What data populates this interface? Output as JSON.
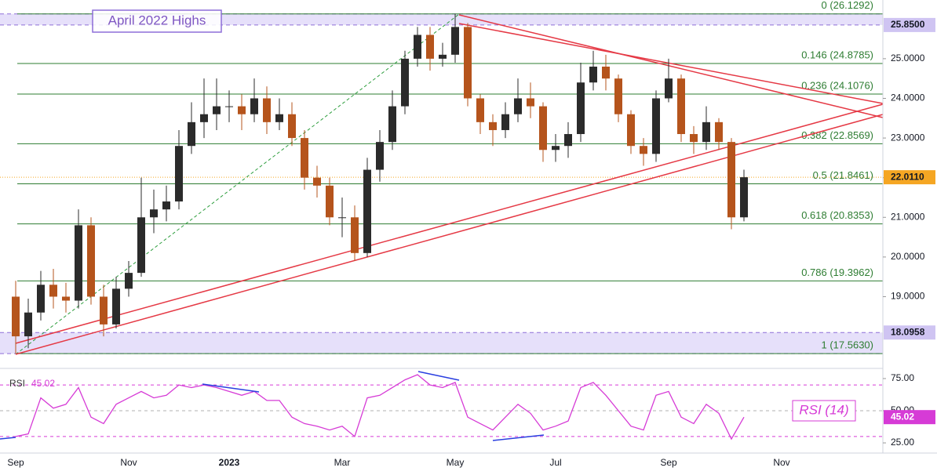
{
  "chart_data": [
    {
      "type": "candlestick",
      "annotation": "April 2022 Highs",
      "categories": [
        "Sep",
        null,
        null,
        null,
        null,
        null,
        null,
        null,
        null,
        "Nov",
        null,
        null,
        null,
        null,
        null,
        null,
        null,
        "2023",
        null,
        null,
        null,
        null,
        null,
        null,
        null,
        null,
        "Mar",
        null,
        null,
        null,
        null,
        null,
        null,
        null,
        null,
        "May",
        null,
        null,
        null,
        null,
        null,
        null,
        null,
        "Jul",
        null,
        null,
        null,
        null,
        null,
        null,
        null,
        null,
        "Sep",
        null,
        null,
        null,
        null,
        null,
        null,
        null,
        null,
        "Nov"
      ],
      "open": [
        19.0,
        18.0,
        18.6,
        19.3,
        19.0,
        18.9,
        20.8,
        19.0,
        18.3,
        19.2,
        19.6,
        21.0,
        21.2,
        21.4,
        22.8,
        23.4,
        23.6,
        23.8,
        23.8,
        23.6,
        24.0,
        23.4,
        23.6,
        23.0,
        22.0,
        21.8,
        21.0,
        21.0,
        20.1,
        22.2,
        22.9,
        23.8,
        25.0,
        25.6,
        25.0,
        25.1,
        25.8,
        24.0,
        23.4,
        23.2,
        23.6,
        24.0,
        23.8,
        22.7,
        22.8,
        23.1,
        24.4,
        24.8,
        24.5,
        23.6,
        22.8,
        22.6,
        24.0,
        24.5,
        23.1,
        22.9,
        23.4,
        22.9,
        21.0,
        null,
        null,
        null
      ],
      "high": [
        19.4,
        18.95,
        19.65,
        19.7,
        19.35,
        21.2,
        21.0,
        19.3,
        19.5,
        19.9,
        22.0,
        21.7,
        21.8,
        23.2,
        23.9,
        24.5,
        24.5,
        24.2,
        24.1,
        24.5,
        24.3,
        24.0,
        23.9,
        23.2,
        22.3,
        22.0,
        21.5,
        21.3,
        22.5,
        23.2,
        24.2,
        25.2,
        25.8,
        25.8,
        25.4,
        26.13,
        25.9,
        24.1,
        23.6,
        23.9,
        24.5,
        24.4,
        23.9,
        23.1,
        23.4,
        24.9,
        25.2,
        25.1,
        24.6,
        23.7,
        23.0,
        24.2,
        25.0,
        24.6,
        23.3,
        23.8,
        23.5,
        23.0,
        22.2,
        null,
        null,
        null
      ],
      "low": [
        17.56,
        17.7,
        18.4,
        18.7,
        18.6,
        18.7,
        18.8,
        18.0,
        18.2,
        19.0,
        19.5,
        20.6,
        20.9,
        21.2,
        22.6,
        23.0,
        23.2,
        23.4,
        23.2,
        23.4,
        23.1,
        23.2,
        22.8,
        21.7,
        21.5,
        20.8,
        20.5,
        19.9,
        20.0,
        21.9,
        22.7,
        23.6,
        24.8,
        24.7,
        24.8,
        24.9,
        23.8,
        23.1,
        22.8,
        23.0,
        23.4,
        23.5,
        22.4,
        22.4,
        22.5,
        22.9,
        24.2,
        24.2,
        23.4,
        22.6,
        22.3,
        22.4,
        23.9,
        22.9,
        22.6,
        22.7,
        22.7,
        20.7,
        20.9,
        null,
        null,
        null
      ],
      "close": [
        18.0,
        18.6,
        19.3,
        19.0,
        18.9,
        20.8,
        19.0,
        18.3,
        19.2,
        19.6,
        21.0,
        21.2,
        21.4,
        22.8,
        23.4,
        23.6,
        23.8,
        23.8,
        23.6,
        24.0,
        23.4,
        23.6,
        23.0,
        22.0,
        21.8,
        21.0,
        21.0,
        20.1,
        22.2,
        22.9,
        23.8,
        25.0,
        25.6,
        25.0,
        25.1,
        25.8,
        24.0,
        23.4,
        23.2,
        23.6,
        24.0,
        23.8,
        22.7,
        22.8,
        23.1,
        24.4,
        24.8,
        24.5,
        23.6,
        22.8,
        22.6,
        24.0,
        24.5,
        23.1,
        22.9,
        23.4,
        22.9,
        21.0,
        22.011,
        null,
        null,
        null
      ],
      "up_color": "#2b2b2b",
      "down_color": "#b5541c",
      "ylim": [
        17.29,
        26.48
      ],
      "yticks": [
        {
          "value": 19,
          "label": "19.0000"
        },
        {
          "value": 20,
          "label": "20.0000"
        },
        {
          "value": 21,
          "label": "21.0000"
        },
        {
          "value": 22,
          "label": "22.0000"
        },
        {
          "value": 23,
          "label": "23.0000"
        },
        {
          "value": 24,
          "label": "24.0000"
        },
        {
          "value": 25,
          "label": "25.0000"
        }
      ],
      "levels": [
        {
          "value": 26.1292,
          "label": "0 (26.1292)"
        },
        {
          "value": 24.8785,
          "label": "0.146 (24.8785)"
        },
        {
          "value": 24.1076,
          "label": "0.236 (24.1076)"
        },
        {
          "value": 22.8569,
          "label": "0.382 (22.8569)"
        },
        {
          "value": 21.8461,
          "label": "0.5 (21.8461)"
        },
        {
          "value": 20.8353,
          "label": "0.618 (20.8353)"
        },
        {
          "value": 19.3962,
          "label": "0.786 (19.3962)"
        },
        {
          "value": 17.563,
          "label": "1 (17.5630)"
        }
      ],
      "level_color": "#2e7d32",
      "price_labels": [
        {
          "value": 25.85,
          "label": "25.8500",
          "color": "#cfc4f2"
        },
        {
          "value": 22.011,
          "label": "22.0110",
          "color": "#f5a623"
        },
        {
          "value": 18.0958,
          "label": "18.0958",
          "color": "#cfc4f2"
        }
      ]
    },
    {
      "type": "line",
      "title": "RSI (14)",
      "name": "RSI",
      "last_label": "45.02",
      "values": [
        30,
        32,
        60,
        52,
        55,
        68,
        45,
        40,
        55,
        60,
        65,
        60,
        62,
        70,
        68,
        70,
        68,
        65,
        62,
        65,
        58,
        58,
        45,
        40,
        38,
        35,
        38,
        30,
        60,
        62,
        68,
        74,
        78,
        70,
        68,
        72,
        45,
        40,
        35,
        45,
        55,
        48,
        35,
        38,
        42,
        68,
        72,
        62,
        50,
        38,
        35,
        62,
        65,
        45,
        40,
        55,
        48,
        28,
        45.02,
        null,
        null,
        null
      ],
      "color": "#d63bd6",
      "ylim": [
        17.1,
        82.9
      ],
      "yticks": [
        {
          "value": 25,
          "label": "25.00"
        },
        {
          "value": 50,
          "label": "50.00"
        },
        {
          "value": 75,
          "label": "75.00"
        }
      ],
      "guides": [
        70,
        50,
        30
      ]
    }
  ]
}
